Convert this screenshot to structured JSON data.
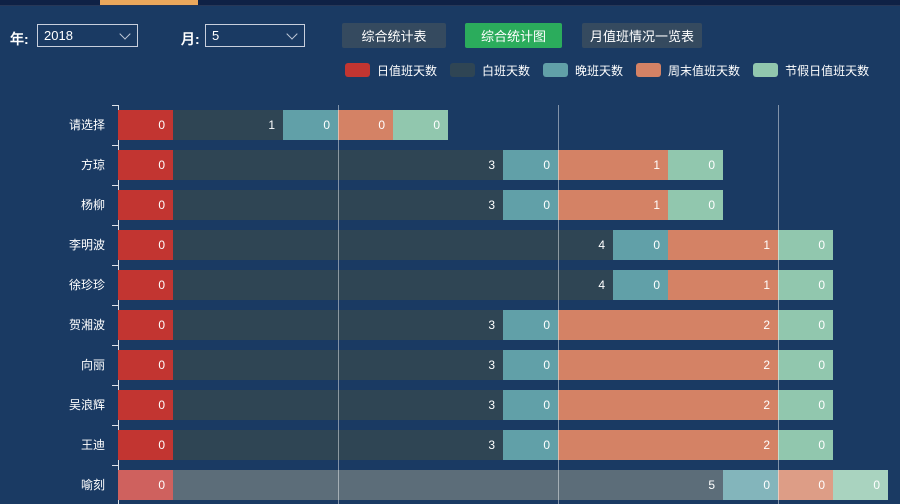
{
  "toolbar": {
    "year_label": "年:",
    "year_value": "2018",
    "month_label": "月:",
    "month_value": "5",
    "buttons": [
      {
        "label": "综合统计表",
        "active": false
      },
      {
        "label": "综合统计图",
        "active": true
      },
      {
        "label": "月值班情况一览表",
        "active": false
      }
    ]
  },
  "colors": {
    "background": "#1a3a63",
    "active_button": "#2bac5c",
    "inactive_button": "#354a5f",
    "tab_indicator": "#eaa75c"
  },
  "chart_data": {
    "type": "bar",
    "orientation": "horizontal",
    "stacked": true,
    "legend_position": "top",
    "grid": true,
    "categories": [
      "请选择",
      "方琼",
      "杨柳",
      "李明波",
      "徐珍珍",
      "贺湘波",
      "向丽",
      "吴浪辉",
      "王迪",
      "喻刻"
    ],
    "series": [
      {
        "name": "日值班天数",
        "color": "#c23531",
        "values": [
          0,
          0,
          0,
          0,
          0,
          0,
          0,
          0,
          0,
          0
        ]
      },
      {
        "name": "白班天数",
        "color": "#2f4554",
        "values": [
          1,
          3,
          3,
          4,
          4,
          3,
          3,
          3,
          3,
          5
        ]
      },
      {
        "name": "晚班天数",
        "color": "#61a0a8",
        "values": [
          0,
          0,
          0,
          0,
          0,
          0,
          0,
          0,
          0,
          0
        ]
      },
      {
        "name": "周末值班天数",
        "color": "#d48265",
        "values": [
          0,
          1,
          1,
          1,
          1,
          2,
          2,
          2,
          2,
          0
        ]
      },
      {
        "name": "节假日值班天数",
        "color": "#91c7ae",
        "values": [
          0,
          0,
          0,
          0,
          0,
          0,
          0,
          0,
          0,
          0
        ]
      }
    ],
    "highlighted_category": "喻刻",
    "xlim": [
      0,
      7
    ]
  }
}
